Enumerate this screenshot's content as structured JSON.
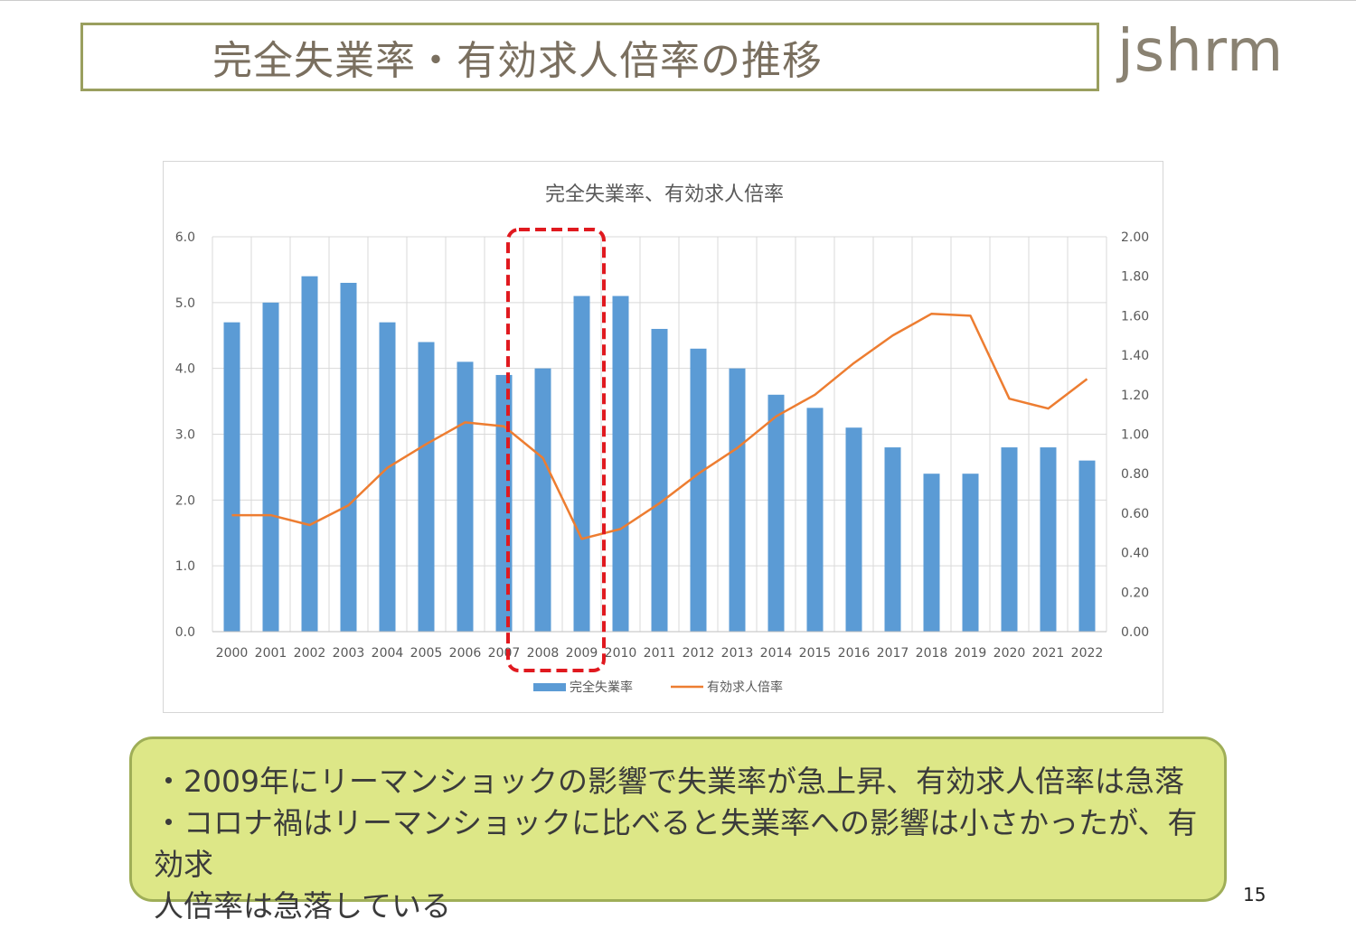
{
  "slide": {
    "title": "完全失業率・有効求人倍率の推移",
    "logo": "jshrm",
    "page_number": "15",
    "notes": [
      "・2009年にリーマンショックの影響で失業率が急上昇、有効求人倍率は急落",
      "・コロナ禍はリーマンショックに比べると失業率への影響は小さかったが、有効求",
      "人倍率は急落している"
    ],
    "highlight": {
      "years": [
        "2008",
        "2009"
      ],
      "color": "#e0191f"
    }
  },
  "chart_data": {
    "type": "bar+line",
    "title": "完全失業率、有効求人倍率",
    "categories": [
      "2000",
      "2001",
      "2002",
      "2003",
      "2004",
      "2005",
      "2006",
      "2007",
      "2008",
      "2009",
      "2010",
      "2011",
      "2012",
      "2013",
      "2014",
      "2015",
      "2016",
      "2017",
      "2018",
      "2019",
      "2020",
      "2021",
      "2022"
    ],
    "series": [
      {
        "name": "完全失業率",
        "type": "bar",
        "axis": "left",
        "color": "#5b9bd5",
        "values": [
          4.7,
          5.0,
          5.4,
          5.3,
          4.7,
          4.4,
          4.1,
          3.9,
          4.0,
          5.1,
          5.1,
          4.6,
          4.3,
          4.0,
          3.6,
          3.4,
          3.1,
          2.8,
          2.4,
          2.4,
          2.8,
          2.8,
          2.6
        ]
      },
      {
        "name": "有効求人倍率",
        "type": "line",
        "axis": "right",
        "color": "#ed7d31",
        "values": [
          0.59,
          0.59,
          0.54,
          0.64,
          0.83,
          0.95,
          1.06,
          1.04,
          0.88,
          0.47,
          0.52,
          0.65,
          0.8,
          0.93,
          1.09,
          1.2,
          1.36,
          1.5,
          1.61,
          1.6,
          1.18,
          1.13,
          1.28
        ]
      }
    ],
    "y_left": {
      "range": [
        0,
        6
      ],
      "ticks": [
        "0.0",
        "1.0",
        "2.0",
        "3.0",
        "4.0",
        "5.0",
        "6.0"
      ]
    },
    "y_right": {
      "range": [
        0,
        2
      ],
      "ticks": [
        "0.00",
        "0.20",
        "0.40",
        "0.60",
        "0.80",
        "1.00",
        "1.20",
        "1.40",
        "1.60",
        "1.80",
        "2.00"
      ]
    },
    "grid": true,
    "legend": "bottom"
  }
}
